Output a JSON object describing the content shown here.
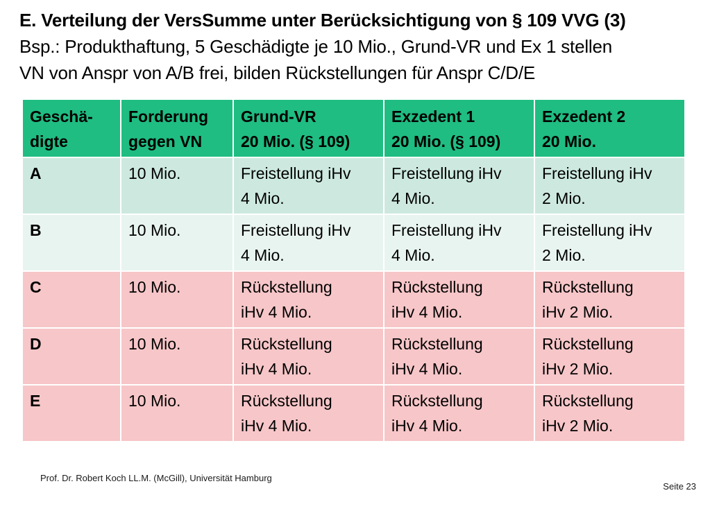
{
  "title": {
    "line1": "E.  Verteilung der VersSumme unter Berücksichtigung von § 109 VVG (3)",
    "line2": "Bsp.: Produkthaftung, 5 Geschädigte je 10 Mio., Grund-VR und Ex 1 stellen",
    "line3": "VN von Anspr von A/B frei, bilden Rückstellungen für Anspr C/D/E"
  },
  "table": {
    "headers": [
      [
        "Geschä-",
        "digte"
      ],
      [
        "Forderung",
        "gegen VN"
      ],
      [
        "Grund-VR",
        "20 Mio. (§ 109)"
      ],
      [
        "Exzedent 1",
        "20 Mio. (§ 109)"
      ],
      [
        "Exzedent 2",
        "20 Mio."
      ]
    ],
    "rows": [
      {
        "label": "A",
        "claim": "10 Mio.",
        "cells": [
          [
            "Freistellung iHv",
            "4 Mio."
          ],
          [
            "Freistellung iHv",
            "4 Mio."
          ],
          [
            "Freistellung iHv",
            "2 Mio."
          ]
        ]
      },
      {
        "label": "B",
        "claim": "10 Mio.",
        "cells": [
          [
            "Freistellung iHv",
            "4 Mio."
          ],
          [
            "Freistellung iHv",
            "4 Mio."
          ],
          [
            "Freistellung iHv",
            "2 Mio."
          ]
        ]
      },
      {
        "label": "C",
        "claim": "10 Mio.",
        "cells": [
          [
            "Rückstellung",
            "iHv 4 Mio."
          ],
          [
            "Rückstellung",
            "iHv 4 Mio."
          ],
          [
            "Rückstellung",
            "iHv 2 Mio."
          ]
        ]
      },
      {
        "label": "D",
        "claim": "10 Mio.",
        "cells": [
          [
            "Rückstellung",
            "iHv 4 Mio."
          ],
          [
            "Rückstellung",
            "iHv 4 Mio."
          ],
          [
            "Rückstellung",
            "iHv 2 Mio."
          ]
        ]
      },
      {
        "label": "E",
        "claim": "10 Mio.",
        "cells": [
          [
            "Rückstellung",
            "iHv 4 Mio."
          ],
          [
            "Rückstellung",
            "iHv 4 Mio."
          ],
          [
            "Rückstellung",
            "iHv 2 Mio."
          ]
        ]
      }
    ]
  },
  "colors": {
    "header": "#1fbd82",
    "row_green_a": "#cde9df",
    "row_green_b": "#e8f4ef",
    "row_red": "#f7c6c8"
  },
  "footer": {
    "author": "Prof. Dr. Robert Koch LL.M. (McGill), Universität Hamburg",
    "page": "Seite 23"
  }
}
